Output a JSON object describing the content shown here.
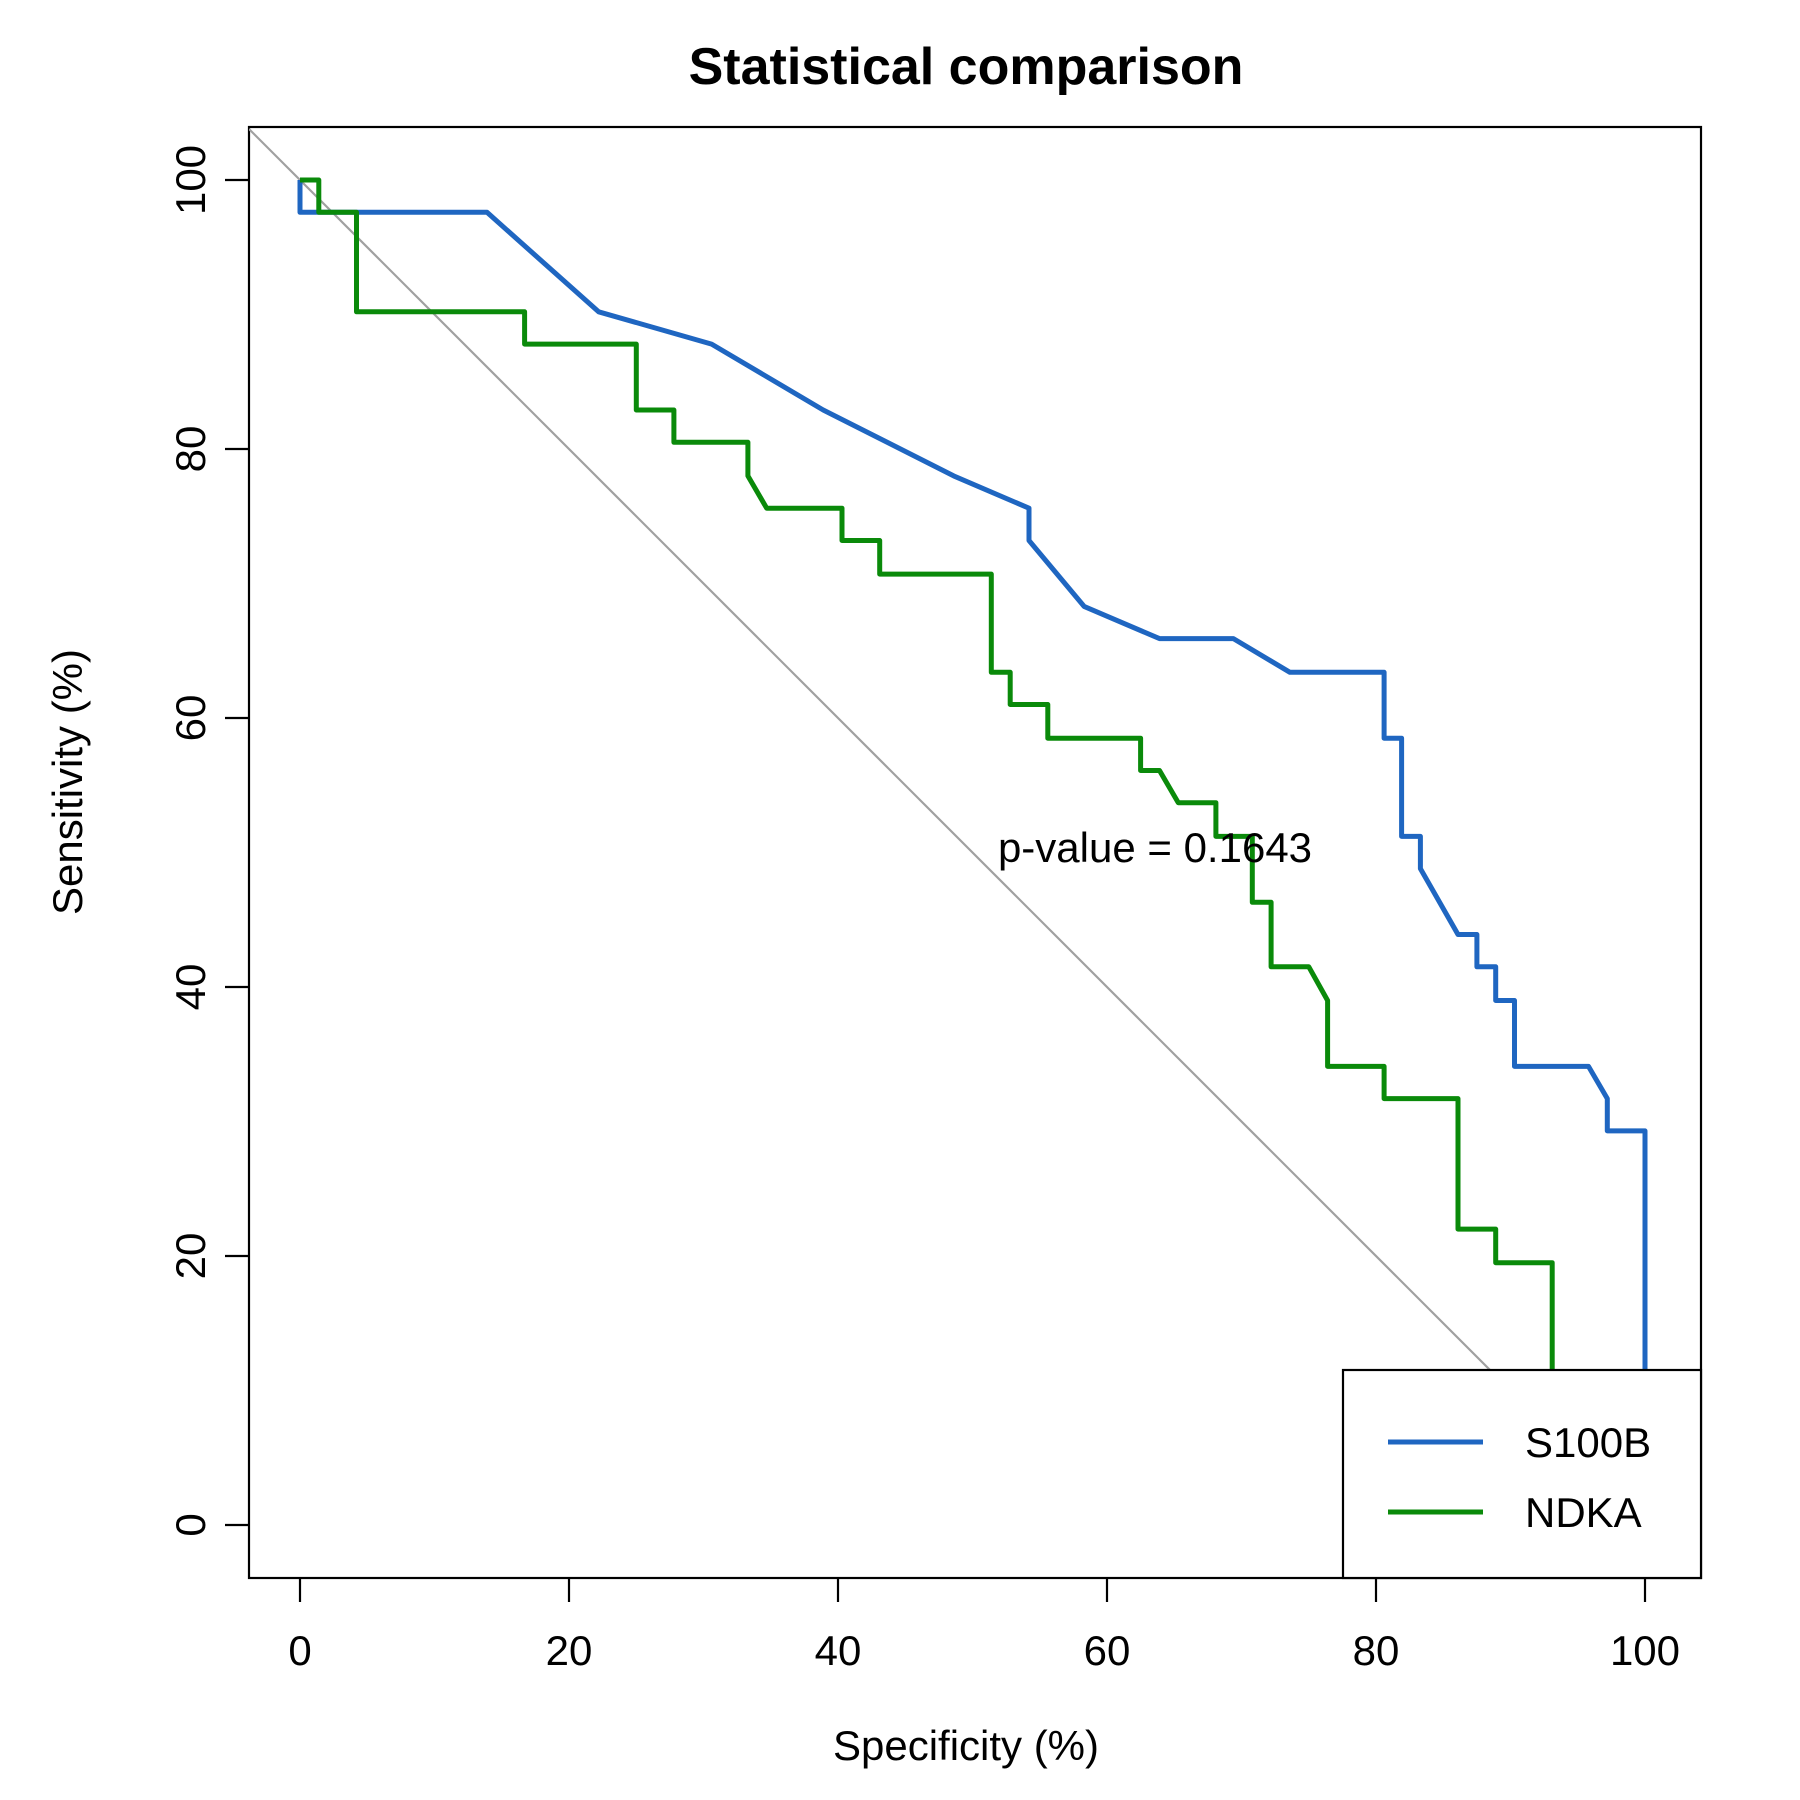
{
  "chart_data": {
    "type": "line",
    "title": "Statistical comparison",
    "xlabel": "Specificity (%)",
    "ylabel": "Sensitivity (%)",
    "xlim": [
      100,
      0
    ],
    "ylim": [
      0,
      100
    ],
    "x_reversed": true,
    "xticks": [
      "100",
      "80",
      "60",
      "40",
      "20",
      "0"
    ],
    "yticks": [
      "0",
      "20",
      "40",
      "60",
      "80",
      "100"
    ],
    "grid": false,
    "legend_position": "bottom-right",
    "annotation": "p-value = 0.1643",
    "reference_line": {
      "from": [
        100,
        0
      ],
      "to": [
        0,
        100
      ],
      "color": "#a0a0a0"
    },
    "series": [
      {
        "name": "S100B",
        "color": "#1f66c1",
        "points": [
          [
            100,
            0
          ],
          [
            100,
            29.3
          ],
          [
            97.2,
            29.3
          ],
          [
            97.2,
            31.7
          ],
          [
            95.8,
            34.1
          ],
          [
            90.3,
            34.1
          ],
          [
            90.3,
            39.0
          ],
          [
            88.9,
            39.0
          ],
          [
            88.9,
            41.5
          ],
          [
            87.5,
            41.5
          ],
          [
            87.5,
            43.9
          ],
          [
            86.1,
            43.9
          ],
          [
            83.3,
            48.8
          ],
          [
            83.3,
            51.2
          ],
          [
            81.9,
            51.2
          ],
          [
            81.9,
            58.5
          ],
          [
            80.6,
            58.5
          ],
          [
            80.6,
            63.4
          ],
          [
            73.6,
            63.4
          ],
          [
            69.4,
            65.9
          ],
          [
            63.9,
            65.9
          ],
          [
            58.3,
            68.3
          ],
          [
            54.2,
            73.2
          ],
          [
            54.2,
            75.6
          ],
          [
            48.6,
            78.0
          ],
          [
            38.9,
            82.9
          ],
          [
            30.6,
            87.8
          ],
          [
            22.2,
            90.2
          ],
          [
            13.9,
            97.6
          ],
          [
            0,
            97.6
          ],
          [
            0,
            100
          ]
        ]
      },
      {
        "name": "NDKA",
        "color": "#0a8a0a",
        "points": [
          [
            100,
            0
          ],
          [
            100,
            2.4
          ],
          [
            98.6,
            2.4
          ],
          [
            98.6,
            4.9
          ],
          [
            97.2,
            4.9
          ],
          [
            97.2,
            7.3
          ],
          [
            95.8,
            7.3
          ],
          [
            95.8,
            9.8
          ],
          [
            93.1,
            9.8
          ],
          [
            93.1,
            19.5
          ],
          [
            88.9,
            19.5
          ],
          [
            88.9,
            22.0
          ],
          [
            86.1,
            22.0
          ],
          [
            86.1,
            31.7
          ],
          [
            80.6,
            31.7
          ],
          [
            80.6,
            34.1
          ],
          [
            76.4,
            34.1
          ],
          [
            76.4,
            39.0
          ],
          [
            75.0,
            41.5
          ],
          [
            72.2,
            41.5
          ],
          [
            72.2,
            46.3
          ],
          [
            70.8,
            46.3
          ],
          [
            70.8,
            51.2
          ],
          [
            68.1,
            51.2
          ],
          [
            68.1,
            53.7
          ],
          [
            65.3,
            53.7
          ],
          [
            63.9,
            56.1
          ],
          [
            62.5,
            56.1
          ],
          [
            62.5,
            58.5
          ],
          [
            55.6,
            58.5
          ],
          [
            55.6,
            61.0
          ],
          [
            52.8,
            61.0
          ],
          [
            52.8,
            63.4
          ],
          [
            51.4,
            63.4
          ],
          [
            51.4,
            70.7
          ],
          [
            43.1,
            70.7
          ],
          [
            43.1,
            73.2
          ],
          [
            40.3,
            73.2
          ],
          [
            40.3,
            75.6
          ],
          [
            34.7,
            75.6
          ],
          [
            33.3,
            78.0
          ],
          [
            33.3,
            80.5
          ],
          [
            27.8,
            80.5
          ],
          [
            27.8,
            82.9
          ],
          [
            25.0,
            82.9
          ],
          [
            25.0,
            87.8
          ],
          [
            16.7,
            87.8
          ],
          [
            16.7,
            90.2
          ],
          [
            4.2,
            90.2
          ],
          [
            4.2,
            97.6
          ],
          [
            1.4,
            97.6
          ],
          [
            1.4,
            100
          ],
          [
            0,
            100
          ]
        ]
      }
    ]
  }
}
